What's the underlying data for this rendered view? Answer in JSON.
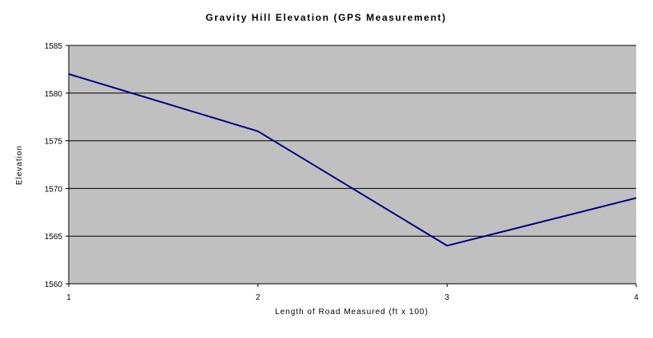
{
  "chart_data": {
    "type": "line",
    "title": "Gravity Hill Elevation (GPS Measurement)",
    "xlabel": "Length of Road Measured (ft x 100)",
    "ylabel": "Elevation",
    "x": [
      1,
      2,
      3,
      4
    ],
    "series": [
      {
        "values": [
          1582,
          1576,
          1564,
          1569
        ]
      }
    ],
    "xlim": [
      1,
      4
    ],
    "ylim": [
      1560,
      1585
    ],
    "xticks": [
      "1",
      "2",
      "3",
      "4"
    ],
    "yticks": [
      "1560",
      "1565",
      "1570",
      "1575",
      "1580",
      "1585"
    ],
    "grid": "horizontal",
    "legend": "none",
    "colors": {
      "plot_background": "#c0c0c0",
      "line": "#000080",
      "grid": "#000000"
    }
  }
}
